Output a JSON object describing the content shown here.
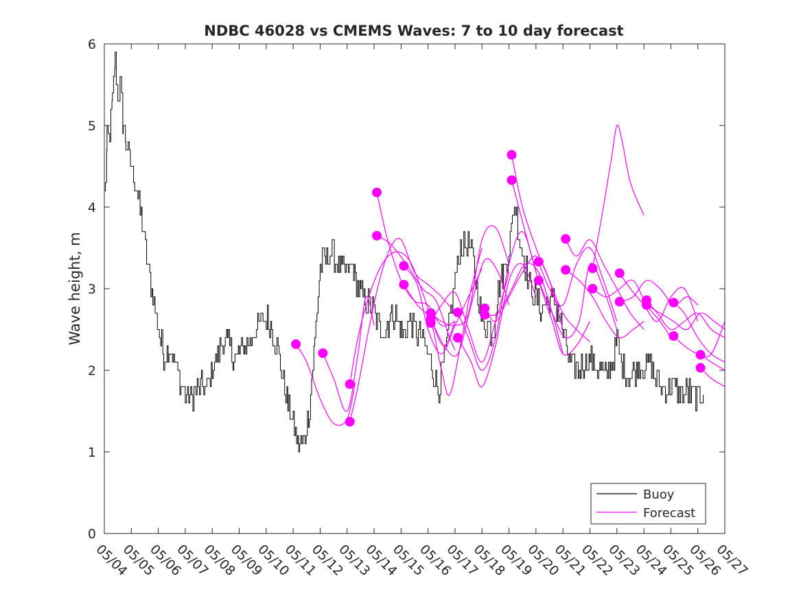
{
  "chart_data": {
    "type": "line",
    "title": "NDBC 46028 vs CMEMS Waves: 7 to 10 day forecast",
    "xlabel": "",
    "ylabel": "Wave height, m",
    "xlim": [
      0,
      23
    ],
    "ylim": [
      0,
      6
    ],
    "x_tick_labels": [
      "05/04",
      "05/05",
      "05/06",
      "05/07",
      "05/08",
      "05/09",
      "05/10",
      "05/11",
      "05/12",
      "05/13",
      "05/14",
      "05/15",
      "05/16",
      "05/17",
      "05/18",
      "05/19",
      "05/20",
      "05/21",
      "05/22",
      "05/23",
      "05/24",
      "05/25",
      "05/26",
      "05/27"
    ],
    "y_ticks": [
      0,
      1,
      2,
      3,
      4,
      5,
      6
    ],
    "x_unit_note": "x values are days since 05/04 00:00",
    "legend": {
      "position": "bottom-right",
      "entries": [
        "Buoy",
        "Forecast"
      ]
    },
    "colors": {
      "buoy": "#000000",
      "forecast": "#ff00ff"
    },
    "series": [
      {
        "name": "Buoy",
        "x": [
          0,
          0.1,
          0.2,
          0.3,
          0.4,
          0.5,
          0.6,
          0.7,
          0.8,
          1.0,
          1.2,
          1.4,
          1.6,
          1.8,
          2.0,
          2.2,
          2.4,
          2.6,
          2.8,
          3.0,
          3.2,
          3.4,
          3.6,
          3.8,
          4.0,
          4.2,
          4.4,
          4.6,
          4.8,
          5.0,
          5.2,
          5.4,
          5.6,
          5.8,
          6.0,
          6.2,
          6.4,
          6.6,
          6.8,
          7.0,
          7.2,
          7.4,
          7.6,
          7.8,
          8.0,
          8.2,
          8.4,
          8.6,
          8.8,
          9.0,
          9.2,
          9.3,
          9.5,
          9.7,
          9.9,
          10.0,
          10.2,
          10.4,
          10.6,
          10.8,
          11.0,
          11.2,
          11.4,
          11.6,
          11.8,
          12.0,
          12.2,
          12.4,
          12.6,
          12.8,
          13.0,
          13.2,
          13.4,
          13.6,
          13.8,
          14.0,
          14.2,
          14.4,
          14.6,
          14.8,
          15.0,
          15.2,
          15.4,
          15.6,
          15.8,
          16.0,
          16.2,
          16.4,
          16.6,
          16.8,
          17.0,
          17.2,
          17.4,
          17.6,
          17.8,
          18.0,
          18.2,
          18.4,
          18.6,
          18.8,
          19.0,
          19.2,
          19.4,
          19.6,
          19.8,
          20.0,
          20.2,
          20.4,
          20.6,
          20.8,
          21.0,
          21.2,
          21.4,
          21.6,
          21.8,
          22.0,
          22.2
        ],
        "values": [
          4.1,
          4.8,
          4.9,
          5.3,
          5.8,
          5.4,
          5.5,
          5.0,
          4.8,
          4.5,
          4.2,
          3.8,
          3.3,
          2.9,
          2.5,
          2.2,
          2.3,
          2.1,
          1.85,
          1.7,
          1.65,
          1.75,
          1.8,
          1.78,
          2.0,
          2.2,
          2.4,
          2.3,
          2.15,
          2.2,
          2.3,
          2.35,
          2.5,
          2.6,
          2.65,
          2.5,
          2.3,
          1.9,
          1.6,
          1.35,
          1.05,
          1.1,
          1.55,
          2.4,
          3.3,
          3.35,
          3.45,
          3.3,
          3.2,
          3.2,
          3.3,
          3.1,
          2.95,
          2.85,
          2.75,
          2.7,
          2.55,
          2.5,
          2.65,
          2.7,
          2.45,
          2.5,
          2.6,
          2.45,
          2.35,
          2.2,
          2.0,
          1.75,
          2.1,
          2.6,
          3.1,
          3.5,
          3.55,
          3.45,
          3.0,
          2.6,
          2.55,
          2.45,
          3.0,
          3.2,
          3.5,
          4.05,
          3.6,
          3.3,
          3.0,
          2.9,
          2.75,
          2.8,
          2.85,
          2.75,
          2.45,
          2.15,
          2.05,
          2.0,
          2.1,
          2.15,
          2.05,
          2.0,
          1.95,
          2.1,
          2.35,
          2.05,
          1.95,
          1.95,
          2.05,
          2.0,
          2.1,
          1.9,
          1.8,
          1.75,
          1.85,
          1.75,
          1.7,
          1.75,
          1.7,
          1.65,
          1.7
        ]
      },
      {
        "name": "Forecast",
        "lines": [
          {
            "x": [
              7.1,
              7.5,
              8.0,
              8.5,
              9.0,
              9.3
            ],
            "y": [
              2.32,
              2.1,
              1.65,
              1.35,
              1.4,
              1.85
            ]
          },
          {
            "x": [
              8.1,
              8.5,
              9.0,
              9.4,
              9.7,
              10.0
            ],
            "y": [
              2.21,
              1.9,
              1.5,
              2.2,
              2.9,
              2.55
            ]
          },
          {
            "x": [
              9.1,
              9.4,
              9.8,
              10.2,
              10.6,
              11.0,
              11.5,
              12.0,
              12.5,
              13.0
            ],
            "y": [
              1.37,
              1.8,
              2.5,
              3.1,
              3.5,
              3.6,
              3.2,
              3.05,
              2.9,
              2.7
            ]
          },
          {
            "x": [
              9.1,
              9.4,
              9.8,
              10.3,
              10.8,
              11.3,
              11.8,
              12.2,
              12.6,
              13.0
            ],
            "y": [
              1.83,
              2.4,
              2.9,
              3.3,
              3.45,
              3.35,
              2.95,
              2.55,
              2.3,
              2.6
            ]
          },
          {
            "x": [
              10.1,
              10.5,
              11.0,
              11.5,
              12.0,
              12.5,
              13.0
            ],
            "y": [
              4.18,
              3.6,
              3.1,
              2.85,
              2.8,
              2.55,
              2.6
            ]
          },
          {
            "x": [
              10.1,
              10.6,
              11.2,
              11.8,
              12.3,
              12.8,
              13.0
            ],
            "y": [
              3.65,
              3.55,
              3.3,
              3.0,
              2.85,
              2.4,
              2.25
            ]
          },
          {
            "x": [
              11.1,
              11.6,
              12.0,
              12.5,
              13.0,
              13.5,
              14.0
            ],
            "y": [
              3.28,
              3.05,
              2.5,
              2.2,
              2.55,
              2.9,
              3.25
            ]
          },
          {
            "x": [
              11.1,
              11.6,
              12.1,
              12.5,
              12.8,
              13.2,
              13.6,
              14.0
            ],
            "y": [
              3.05,
              2.8,
              2.6,
              2.0,
              1.7,
              2.3,
              3.0,
              3.5
            ]
          },
          {
            "x": [
              12.1,
              12.5,
              13.0,
              13.5,
              14.0,
              14.5,
              15.0
            ],
            "y": [
              2.7,
              2.6,
              2.55,
              2.7,
              3.6,
              3.75,
              3.3
            ]
          },
          {
            "x": [
              12.1,
              12.6,
              13.1,
              13.6,
              14.1,
              14.6,
              15.0
            ],
            "y": [
              2.63,
              2.3,
              2.2,
              2.8,
              3.35,
              3.2,
              2.8
            ]
          },
          {
            "x": [
              12.1,
              12.5,
              13.0,
              13.5,
              14.0,
              14.5,
              15.0
            ],
            "y": [
              2.58,
              2.8,
              2.95,
              2.5,
              2.1,
              2.6,
              3.2
            ]
          },
          {
            "x": [
              13.1,
              13.5,
              14.0,
              14.5,
              15.0,
              15.5,
              16.0
            ],
            "y": [
              2.71,
              2.4,
              2.0,
              2.4,
              3.3,
              3.7,
              3.2
            ]
          },
          {
            "x": [
              13.1,
              13.6,
              14.0,
              14.5,
              15.0,
              15.5,
              16.0
            ],
            "y": [
              2.4,
              2.1,
              1.8,
              2.3,
              3.1,
              3.3,
              2.9
            ]
          },
          {
            "x": [
              14.1,
              14.5,
              15.0,
              15.5,
              16.0,
              16.5,
              17.0
            ],
            "y": [
              2.76,
              2.6,
              2.9,
              3.2,
              3.4,
              3.1,
              2.5
            ]
          },
          {
            "x": [
              14.1,
              14.6,
              15.1,
              15.6,
              16.1,
              16.6,
              17.0
            ],
            "y": [
              2.68,
              2.7,
              3.0,
              3.3,
              3.2,
              2.7,
              2.2
            ]
          },
          {
            "x": [
              15.1,
              15.5,
              16.0,
              16.5,
              17.0,
              17.5,
              18.0
            ],
            "y": [
              4.64,
              4.0,
              3.5,
              3.1,
              2.7,
              2.5,
              2.35
            ]
          },
          {
            "x": [
              15.1,
              15.6,
              16.1,
              16.6,
              17.0,
              17.5,
              18.0
            ],
            "y": [
              4.33,
              3.7,
              3.1,
              2.6,
              2.2,
              2.3,
              2.6
            ]
          },
          {
            "x": [
              16.1,
              16.5,
              17.0,
              17.5,
              18.0,
              18.5,
              19.0
            ],
            "y": [
              3.33,
              3.0,
              2.8,
              3.3,
              3.5,
              3.1,
              2.6
            ]
          },
          {
            "x": [
              16.1,
              16.6,
              17.1,
              17.6,
              18.0,
              18.5,
              19.0
            ],
            "y": [
              3.1,
              2.7,
              2.4,
              2.6,
              3.3,
              3.0,
              2.5
            ]
          },
          {
            "x": [
              17.1,
              17.5,
              18.0,
              18.5,
              19.0,
              19.5,
              20.0
            ],
            "y": [
              3.61,
              3.4,
              3.6,
              3.3,
              3.0,
              2.7,
              2.5
            ]
          },
          {
            "x": [
              17.1,
              17.6,
              18.1,
              18.6,
              19.1,
              19.6,
              20.0
            ],
            "y": [
              3.23,
              3.1,
              2.9,
              2.6,
              2.4,
              2.5,
              2.6
            ]
          },
          {
            "x": [
              18.1,
              18.5,
              18.8,
              19.0,
              19.2,
              19.5,
              20.0
            ],
            "y": [
              3.25,
              4.0,
              4.6,
              5.0,
              4.8,
              4.3,
              3.9
            ]
          },
          {
            "x": [
              18.1,
              18.6,
              19.1,
              19.6,
              20.1,
              20.6,
              21.0
            ],
            "y": [
              3.0,
              2.9,
              3.0,
              3.1,
              2.8,
              2.6,
              2.4
            ]
          },
          {
            "x": [
              19.1,
              19.5,
              20.0,
              20.5,
              21.0,
              21.5,
              22.0
            ],
            "y": [
              3.19,
              3.0,
              2.8,
              2.6,
              2.9,
              3.0,
              2.6
            ]
          },
          {
            "x": [
              19.1,
              19.6,
              20.1,
              20.6,
              21.1,
              21.6,
              22.0
            ],
            "y": [
              2.84,
              2.9,
              3.1,
              3.0,
              2.8,
              2.9,
              2.8
            ]
          },
          {
            "x": [
              20.1,
              20.5,
              21.0,
              21.5,
              22.0,
              22.5,
              23.0
            ],
            "y": [
              2.86,
              2.7,
              2.5,
              2.6,
              2.7,
              2.5,
              2.4
            ]
          },
          {
            "x": [
              20.1,
              20.6,
              21.1,
              21.6,
              22.1,
              22.6,
              23.0
            ],
            "y": [
              2.8,
              2.7,
              2.6,
              2.5,
              2.7,
              2.6,
              2.5
            ]
          },
          {
            "x": [
              21.1,
              21.5,
              22.0,
              22.5,
              23.0
            ],
            "y": [
              2.83,
              2.7,
              2.4,
              2.2,
              2.1
            ]
          },
          {
            "x": [
              21.1,
              21.5,
              22.0,
              22.5,
              23.0
            ],
            "y": [
              2.42,
              2.3,
              2.2,
              2.2,
              2.6
            ]
          },
          {
            "x": [
              22.1,
              22.5,
              23.0
            ],
            "y": [
              2.19,
              2.1,
              2.0
            ]
          },
          {
            "x": [
              22.1,
              22.5,
              23.0
            ],
            "y": [
              2.03,
              1.9,
              1.8
            ]
          }
        ],
        "markers": [
          [
            7.1,
            2.32
          ],
          [
            8.1,
            2.21
          ],
          [
            9.1,
            1.37
          ],
          [
            9.1,
            1.83
          ],
          [
            10.1,
            4.18
          ],
          [
            10.1,
            3.65
          ],
          [
            11.1,
            3.28
          ],
          [
            11.1,
            3.05
          ],
          [
            12.1,
            2.7
          ],
          [
            12.1,
            2.63
          ],
          [
            12.1,
            2.58
          ],
          [
            13.1,
            2.71
          ],
          [
            13.1,
            2.4
          ],
          [
            14.1,
            2.76
          ],
          [
            14.1,
            2.68
          ],
          [
            15.1,
            4.64
          ],
          [
            15.1,
            4.33
          ],
          [
            16.1,
            3.33
          ],
          [
            16.1,
            3.1
          ],
          [
            17.1,
            3.61
          ],
          [
            17.1,
            3.23
          ],
          [
            18.1,
            3.25
          ],
          [
            18.1,
            3.0
          ],
          [
            19.1,
            3.19
          ],
          [
            19.1,
            2.84
          ],
          [
            20.1,
            2.86
          ],
          [
            20.1,
            2.8
          ],
          [
            21.1,
            2.83
          ],
          [
            21.1,
            2.42
          ],
          [
            22.1,
            2.19
          ],
          [
            22.1,
            2.03
          ]
        ]
      }
    ]
  }
}
